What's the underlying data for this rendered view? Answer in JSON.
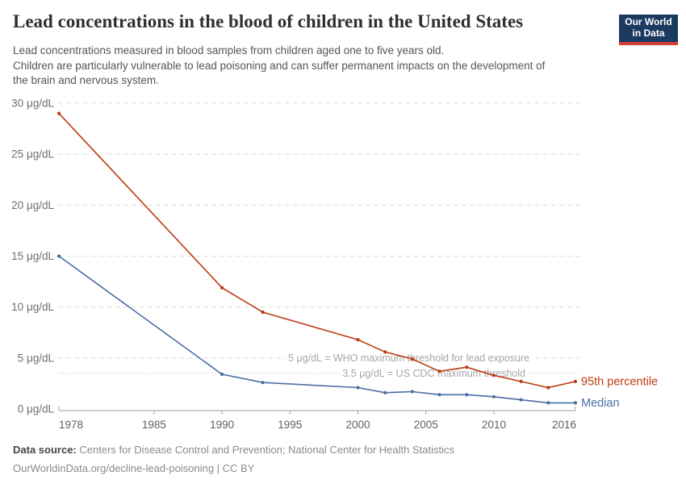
{
  "header": {
    "title": "Lead concentrations in the blood of children in the United States",
    "subtitle_lines": [
      "Lead concentrations measured in blood samples from children aged one to five years old.",
      "Children are particularly vulnerable to lead poisoning and can suffer permanent impacts on the development of",
      "the brain and nervous system."
    ],
    "logo": {
      "text_line1": "Our World",
      "text_line2": "in Data",
      "bg_color": "#1b3a5f",
      "stripe_color": "#d73c34"
    }
  },
  "chart_data": {
    "type": "line",
    "title": "Lead concentrations in the blood of children in the United States",
    "unit": "μg/dL",
    "x": [
      1978,
      1990,
      1993,
      2000,
      2002,
      2004,
      2006,
      2008,
      2010,
      2012,
      2014,
      2016
    ],
    "series": [
      {
        "name": "95th percentile",
        "color": "#bd3a0f",
        "values": [
          29.0,
          11.9,
          9.5,
          6.8,
          5.6,
          4.9,
          3.7,
          4.1,
          3.3,
          2.7,
          2.1,
          2.7
        ]
      },
      {
        "name": "Median",
        "color": "#4a6da3",
        "values": [
          15.0,
          3.4,
          2.6,
          2.1,
          1.6,
          1.7,
          1.4,
          1.4,
          1.2,
          0.9,
          0.6,
          0.6
        ]
      }
    ],
    "xticks": [
      1978,
      1985,
      1990,
      1995,
      2000,
      2005,
      2010,
      2016
    ],
    "yticks": [
      0,
      5,
      10,
      15,
      20,
      25,
      30
    ],
    "xlim": [
      1978,
      2016
    ],
    "ylim": [
      0,
      30
    ],
    "ylabel_format": "{v} μg/dL",
    "grid": true,
    "legend_position": "end-of-line",
    "annotations": [
      {
        "value": 5,
        "text": "5 μg/dL = WHO maximum threshold for lead exposure",
        "line_style": "dashed",
        "text_anchor_x": 656
      },
      {
        "value": 3.5,
        "text": "3.5 μg/dL = US CDC maximum threshold",
        "line_style": "dotted",
        "text_anchor_x": 651
      }
    ]
  },
  "footer": {
    "source_label": "Data source:",
    "source_text": "Centers for Disease Control and Prevention; National Center for Health Statistics",
    "note_line": "OurWorldinData.org/decline-lead-poisoning | CC BY"
  }
}
